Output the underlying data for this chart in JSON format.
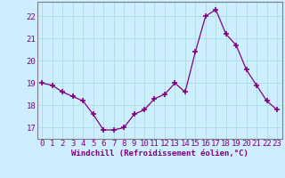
{
  "x": [
    0,
    1,
    2,
    3,
    4,
    5,
    6,
    7,
    8,
    9,
    10,
    11,
    12,
    13,
    14,
    15,
    16,
    17,
    18,
    19,
    20,
    21,
    22,
    23
  ],
  "y": [
    19.0,
    18.9,
    18.6,
    18.4,
    18.2,
    17.6,
    16.9,
    16.9,
    17.0,
    17.6,
    17.8,
    18.3,
    18.5,
    19.0,
    18.6,
    20.4,
    22.0,
    22.3,
    21.2,
    20.7,
    19.6,
    18.9,
    18.2,
    17.8
  ],
  "line_color": "#800080",
  "marker_color": "#800080",
  "background_color": "#cceeff",
  "grid_color": "#aadddd",
  "ylabel_ticks": [
    17,
    18,
    19,
    20,
    21,
    22
  ],
  "xlabel": "Windchill (Refroidissement éolien,°C)",
  "xlabel_fontsize": 6.5,
  "tick_fontsize": 6.5,
  "ylim": [
    16.5,
    22.65
  ],
  "xlim": [
    -0.5,
    23.5
  ],
  "figsize": [
    3.2,
    2.0
  ],
  "dpi": 100
}
